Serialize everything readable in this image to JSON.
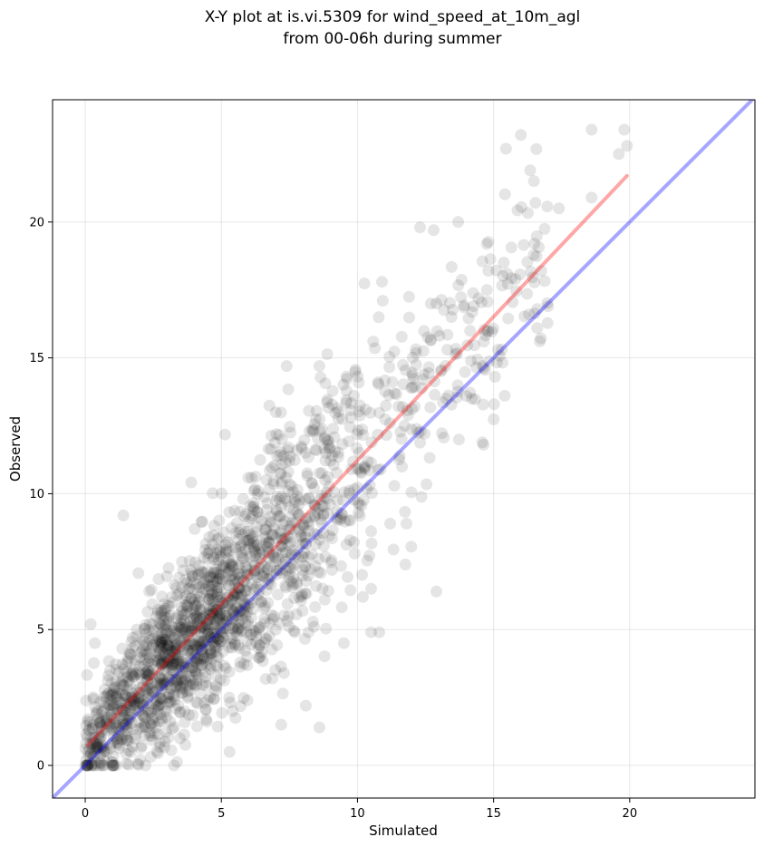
{
  "chart_data": {
    "type": "scatter",
    "title_line1": "X-Y plot at is.vi.5309 for wind_speed_at_10m_agl",
    "title_line2": "from 00-06h during summer",
    "xlabel": "Simulated",
    "ylabel": "Observed",
    "xlim": [
      -1.2,
      24.6
    ],
    "ylim": [
      -1.2,
      24.5
    ],
    "xticks": [
      0,
      5,
      10,
      15,
      20
    ],
    "yticks": [
      0,
      5,
      10,
      15,
      20
    ],
    "xtick_labels": [
      "0",
      "5",
      "10",
      "15",
      "20"
    ],
    "ytick_labels": [
      "0",
      "5",
      "10",
      "15",
      "20"
    ],
    "grid": true,
    "point_color": "#000000",
    "point_opacity": 0.1,
    "fit_line": {
      "color": "#ff0000",
      "opacity": 0.35,
      "x": [
        0.1,
        19.9
      ],
      "y": [
        0.75,
        21.7
      ]
    },
    "identity_line": {
      "color": "#0000ff",
      "opacity": 0.35,
      "x": [
        -1.2,
        24.6
      ],
      "y": [
        -1.2,
        24.6
      ]
    },
    "highlight_points": {
      "x": [
        16.0,
        18.6,
        19.8,
        19.9,
        19.6,
        18.6,
        17.4,
        12.3,
        13.7,
        12.8,
        10.9,
        12.9,
        8.6,
        7.4,
        7.0,
        11.2,
        11.8,
        10.8,
        10.5,
        10.2,
        8.8,
        8.4,
        8.2,
        7.7,
        12.9,
        9.9,
        7.5,
        6.0,
        7.2,
        8.6,
        8.1,
        9.5,
        7.3,
        4.9,
        5.3,
        1.4,
        0.1,
        0.2,
        13.3,
        14.0,
        14.2,
        14.6,
        15.3,
        16.3,
        16.6,
        15.8,
        15.5,
        17.0,
        10.5
      ],
      "y": [
        23.2,
        23.4,
        23.4,
        22.8,
        22.5,
        20.9,
        20.5,
        19.8,
        20.0,
        19.7,
        17.8,
        17.0,
        14.7,
        14.7,
        13.0,
        8.9,
        8.9,
        4.9,
        6.5,
        6.2,
        6.1,
        5.1,
        4.9,
        4.9,
        6.4,
        7.8,
        5.1,
        6.1,
        1.5,
        1.4,
        2.2,
        4.5,
        3.4,
        4.4,
        0.5,
        9.2,
        1.7,
        5.2,
        15.3,
        13.6,
        13.5,
        14.7,
        15.3,
        16.6,
        16.1,
        17.9,
        18.1,
        16.9,
        4.9
      ]
    }
  }
}
